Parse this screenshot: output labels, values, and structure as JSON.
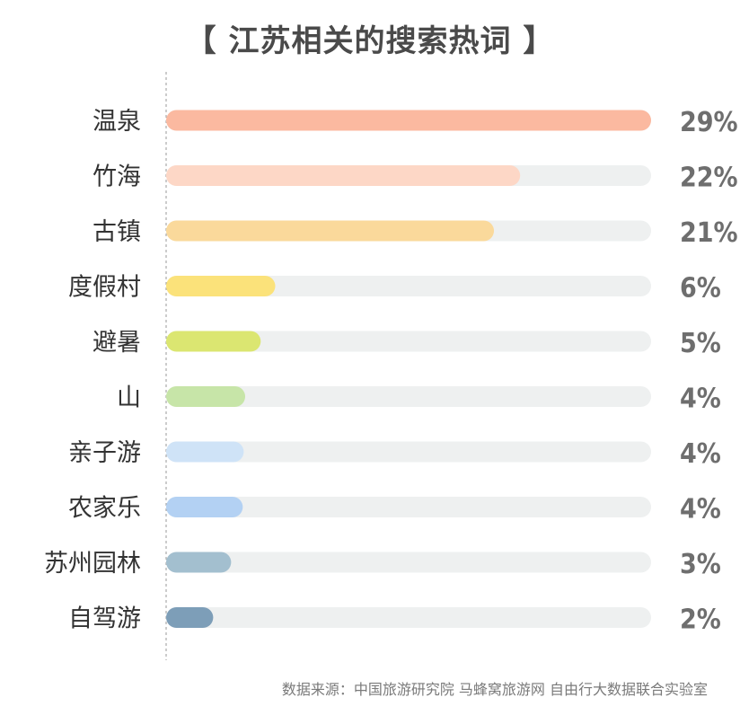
{
  "title": "【 江苏相关的搜索热词 】",
  "source": "数据来源：中国旅游研究院 马蜂窝旅游网 自由行大数据联合实验室",
  "chart_data": {
    "type": "bar",
    "orientation": "horizontal",
    "title": "【 江苏相关的搜索热词 】",
    "categories": [
      "温泉",
      "竹海",
      "古镇",
      "度假村",
      "避暑",
      "山",
      "亲子游",
      "农家乐",
      "苏州园林",
      "自驾游"
    ],
    "values": [
      29,
      22,
      21,
      6,
      5,
      4,
      4,
      4,
      3,
      2
    ],
    "value_labels": [
      "29%",
      "22%",
      "21%",
      "6%",
      "5%",
      "4%",
      "4%",
      "4%",
      "3%",
      "2%"
    ],
    "fill_fraction": [
      1.0,
      0.73,
      0.676,
      0.225,
      0.195,
      0.163,
      0.16,
      0.158,
      0.134,
      0.097
    ],
    "colors": [
      "#fbb9a0",
      "#fdd7c6",
      "#fad99b",
      "#fbe27a",
      "#dbe671",
      "#c7e5a8",
      "#cfe3f7",
      "#b3d1f3",
      "#a3bfcf",
      "#7d9eb8"
    ],
    "track_color": "#eef0f0",
    "axis_line": "dashed",
    "grid": false
  }
}
